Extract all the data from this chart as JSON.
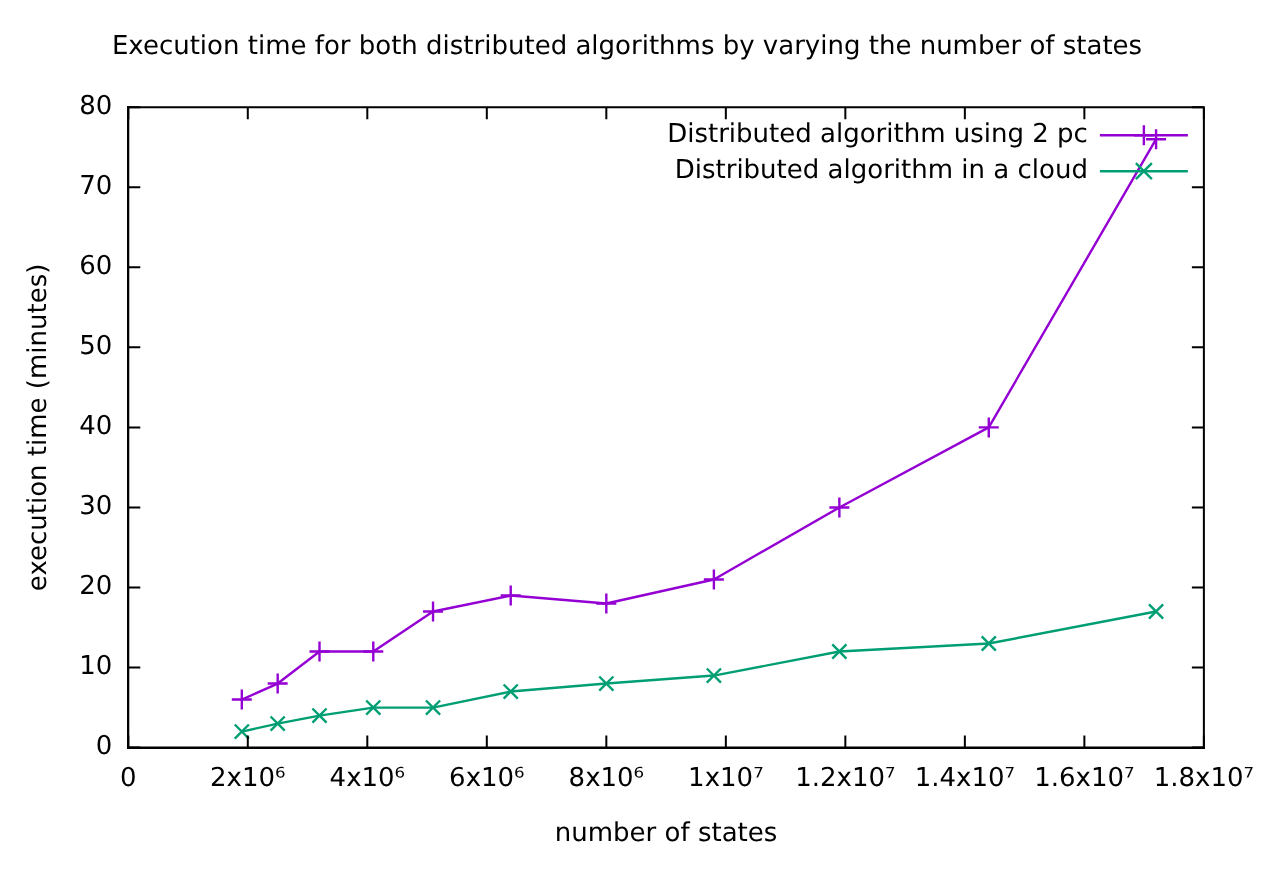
{
  "chart_data": {
    "type": "line",
    "title": "Execution time for both distributed algorithms by varying the number of states",
    "xlabel": "number of states",
    "ylabel": "execution time (minutes)",
    "x": [
      1900000,
      2500000,
      3200000,
      4100000,
      5100000,
      6400000,
      8000000,
      9800000,
      11900000,
      14400000,
      17200000
    ],
    "series": [
      {
        "name": "Distributed algorithm using 2 pc",
        "color": "#9400d3",
        "marker": "cross",
        "values": [
          6,
          8,
          12,
          12,
          17,
          19,
          18,
          21,
          30,
          40,
          76
        ]
      },
      {
        "name": "Distributed algorithm in a cloud",
        "color": "#009e73",
        "marker": "x",
        "values": [
          2,
          3,
          4,
          5,
          5,
          7,
          8,
          9,
          12,
          13,
          17
        ]
      }
    ],
    "xlim": [
      0,
      18000000
    ],
    "xticks": [
      0,
      {
        "value": 2000000,
        "label": "2x10⁶"
      },
      {
        "value": 4000000,
        "label": "4x10⁶"
      },
      {
        "value": 6000000,
        "label": "6x10⁶"
      },
      {
        "value": 8000000,
        "label": "8x10⁶"
      },
      {
        "value": 10000000,
        "label": "1x10⁷"
      },
      {
        "value": 12000000,
        "label": "1.2x10⁷"
      },
      {
        "value": 14000000,
        "label": "1.4x10⁷"
      },
      {
        "value": 16000000,
        "label": "1.6x10⁷"
      },
      {
        "value": 18000000,
        "label": "1.8x10⁷"
      }
    ],
    "ylim": [
      0,
      80
    ],
    "yticks": [
      0,
      10,
      20,
      30,
      40,
      50,
      60,
      70,
      80
    ],
    "grid": false,
    "legend": "top right",
    "line_style": "solid"
  }
}
